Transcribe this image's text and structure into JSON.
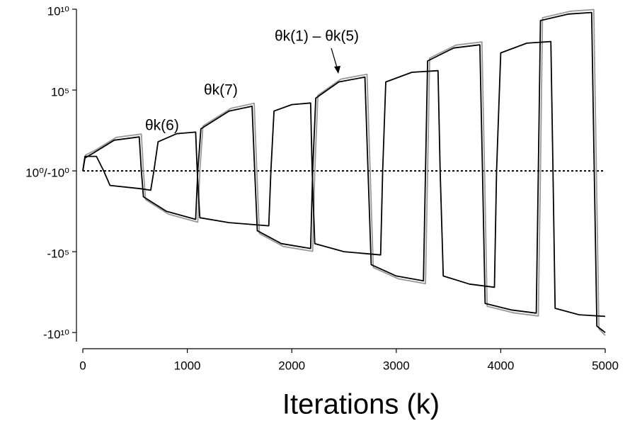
{
  "chart_data": {
    "type": "line",
    "xlabel": "Iterations (k)",
    "yscale": "signed-log",
    "xlim": [
      0,
      5000
    ],
    "xticks": [
      0,
      1000,
      2000,
      3000,
      4000,
      5000
    ],
    "ylim": [
      -100000000000,
      10000000000
    ],
    "yticks": [
      {
        "value": 10000000000,
        "label": "10¹⁰"
      },
      {
        "value": 100000,
        "label": "10⁵"
      },
      {
        "value": 1,
        "label": "10⁰/-10⁰"
      },
      {
        "value": -100000,
        "label": "-10⁵"
      },
      {
        "value": -10000000000,
        "label": "-10¹⁰"
      }
    ],
    "reference_line": 1,
    "annotations": [
      {
        "text": "θk(6)"
      },
      {
        "text": "θk(7)"
      },
      {
        "text": "θk(1) – θk(5)"
      }
    ],
    "series": [
      {
        "color": "#999999",
        "x": [
          0,
          25,
          120,
          320,
          560,
          580,
          600,
          820,
          1100,
          1120,
          1150,
          1420,
          1640,
          1665,
          1690,
          1920,
          2200,
          2220,
          2250,
          2470,
          2720,
          2750,
          2780,
          3020,
          3280,
          3300,
          3320,
          3570,
          3820,
          3845,
          3870,
          4120,
          4360,
          4380,
          4400,
          4670,
          4890,
          4915,
          4940,
          5000
        ],
        "values": [
          1,
          9.5,
          19,
          119,
          189,
          1,
          -60,
          -474,
          -1500,
          1,
          597,
          7518,
          15000,
          1,
          -7518,
          -47434,
          -94644,
          1,
          47434,
          474342,
          946436,
          1,
          -946436,
          -4743417,
          -9464360,
          1,
          9464360,
          59716076,
          94643601,
          1,
          -237733979,
          -597160757,
          -946436016,
          1,
          2992893473,
          7517808504,
          9464360168,
          1,
          -5971607559,
          -15000000000
        ]
      },
      {
        "color": "#000000",
        "x": [
          0,
          20,
          100,
          300,
          540,
          560,
          580,
          800,
          1080,
          1100,
          1130,
          1400,
          1620,
          1645,
          1670,
          1900,
          2180,
          2200,
          2230,
          2450,
          2700,
          2730,
          2760,
          3000,
          3260,
          3280,
          3300,
          3550,
          3800,
          3825,
          3850,
          4100,
          4340,
          4360,
          4380,
          4650,
          4870,
          4895,
          4920,
          5000
        ],
        "values": [
          1,
          6.3,
          12.6,
          79,
          126,
          1,
          -40,
          -316,
          -1000,
          1,
          398,
          5012,
          10000,
          1,
          -5012,
          -31623,
          -63096,
          1,
          31623,
          316228,
          630957,
          1,
          -630957,
          -3162278,
          -6309573,
          1,
          6309573,
          39810717,
          63095734,
          1,
          -158489319,
          -398107171,
          -630957344,
          1,
          1995262315,
          5011872336,
          6309573445,
          1,
          -3981071706,
          -10000000000
        ]
      },
      {
        "color": "#000000",
        "x": [
          0,
          20,
          130,
          200,
          260,
          550,
          650,
          680,
          720,
          900,
          1080,
          1095,
          1120,
          1400,
          1780,
          1800,
          1830,
          2000,
          2180,
          2195,
          2220,
          2500,
          2850,
          2870,
          2900,
          3150,
          3400,
          3420,
          3450,
          3700,
          3940,
          3960,
          4000,
          4250,
          4480,
          4500,
          4520,
          4750,
          5000
        ],
        "values": [
          1,
          7.9,
          7.9,
          1,
          -7.9,
          -12.6,
          -15.8,
          1,
          63,
          200,
          251,
          1,
          -794,
          -1585,
          -2512,
          1,
          5012,
          12589,
          15849,
          1,
          -31623,
          -100000,
          -158489,
          1,
          316228,
          1258925,
          1584893,
          1,
          -3162278,
          -10000000,
          -15848932,
          1,
          19952623,
          79432823,
          100000000,
          1,
          -316227766,
          -794328235,
          -1000000000
        ]
      }
    ]
  }
}
